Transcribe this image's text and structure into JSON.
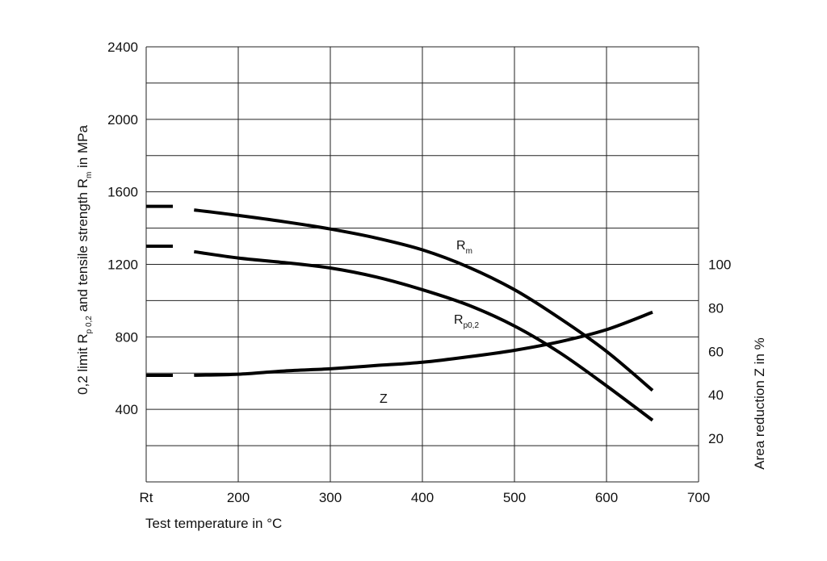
{
  "chart_data": {
    "type": "line",
    "x_axis": {
      "label": "Test temperature in °C",
      "tick_labels": [
        "Rt",
        "200",
        "300",
        "400",
        "500",
        "600",
        "700"
      ],
      "ticks": [
        100,
        200,
        300,
        400,
        500,
        600,
        700
      ],
      "range": [
        100,
        700
      ]
    },
    "y_axis_left": {
      "label_parts": {
        "pre": "0,2 limit R",
        "sub1": "p 0,2",
        "mid": " and tensile strength R",
        "sub2": "m",
        "post": " in MPa"
      },
      "tick_labels": [
        "400",
        "800",
        "1200",
        "1600",
        "2000",
        "2400"
      ],
      "ticks": [
        400,
        800,
        1200,
        1600,
        2000,
        2400
      ],
      "range": [
        0,
        2400
      ]
    },
    "y_axis_right": {
      "label": "Area reduction Z in %",
      "tick_labels": [
        "20",
        "40",
        "60",
        "80",
        "100"
      ],
      "ticks": [
        20,
        40,
        60,
        80,
        100
      ],
      "range": [
        0,
        100
      ],
      "aligned_with_left": [
        0,
        1200
      ]
    },
    "grid": true,
    "series": [
      {
        "name": "Rm",
        "label_main": "R",
        "label_sub": "m",
        "axis": "left",
        "rt_value": 1520,
        "x": [
          152,
          200,
          250,
          300,
          350,
          400,
          450,
          500,
          550,
          600,
          650
        ],
        "y": [
          1500,
          1470,
          1435,
          1395,
          1345,
          1280,
          1185,
          1060,
          900,
          720,
          505
        ]
      },
      {
        "name": "Rp0,2",
        "label_main": "R",
        "label_sub": "p0,2",
        "axis": "left",
        "rt_value": 1300,
        "x": [
          152,
          200,
          250,
          300,
          350,
          400,
          450,
          500,
          550,
          600,
          650
        ],
        "y": [
          1270,
          1235,
          1210,
          1180,
          1130,
          1060,
          975,
          860,
          710,
          530,
          340
        ]
      },
      {
        "name": "Z",
        "label_main": "Z",
        "label_sub": "",
        "axis": "right",
        "rt_value": 49,
        "x": [
          152,
          200,
          250,
          300,
          350,
          400,
          450,
          500,
          550,
          600,
          650
        ],
        "y": [
          49,
          49.5,
          51,
          52,
          53.5,
          55,
          57.5,
          60.5,
          64.5,
          70,
          78
        ]
      }
    ]
  }
}
